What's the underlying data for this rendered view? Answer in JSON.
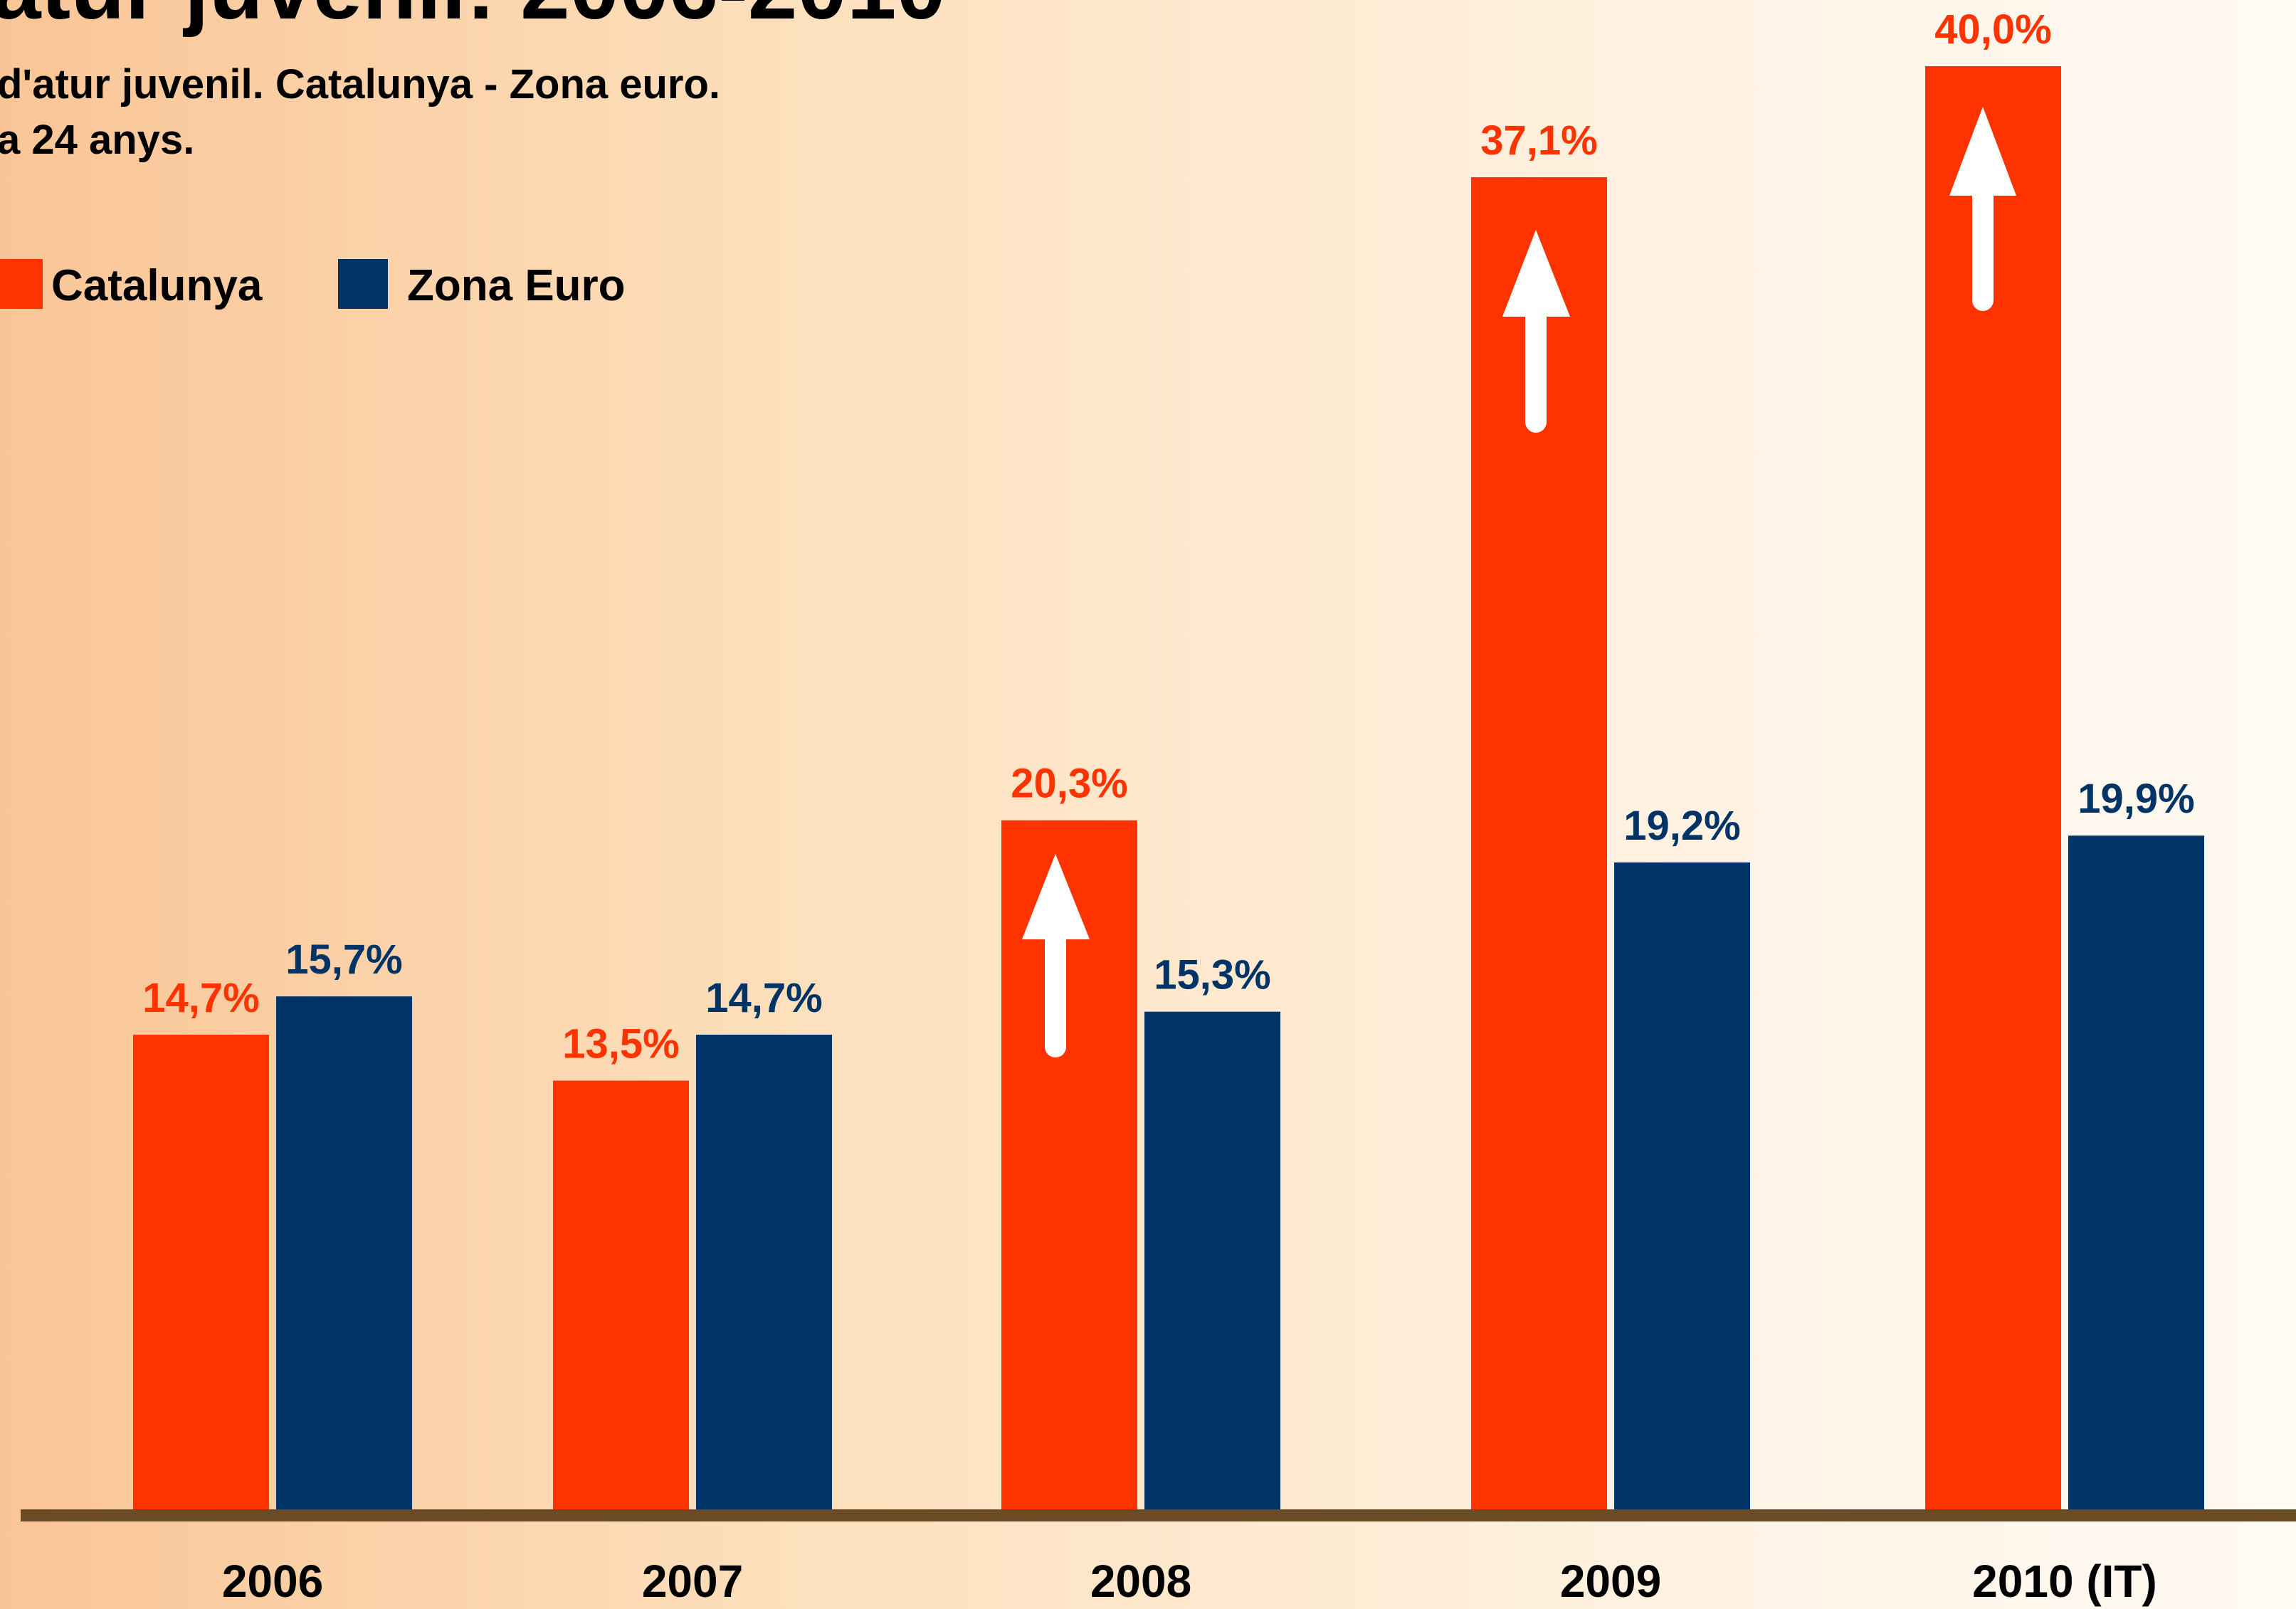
{
  "chart_data": {
    "type": "bar",
    "title": "atur juvenil: 2006-2010",
    "subtitle": [
      "d'atur juvenil. Catalunya - Zona euro.",
      "a 24 anys."
    ],
    "categories": [
      "2006",
      "2007",
      "2008",
      "2009",
      "2010 (IT)"
    ],
    "series": [
      {
        "name": "Catalunya",
        "color": "#ff3300",
        "values": [
          14.7,
          13.5,
          20.3,
          37.1,
          40.0
        ],
        "value_labels": [
          "14,7%",
          "13,5%",
          "20,3%",
          "37,1%",
          "40,0%"
        ]
      },
      {
        "name": "Zona Euro",
        "color": "#003366",
        "values": [
          15.7,
          14.7,
          15.3,
          19.2,
          19.9
        ],
        "value_labels": [
          "15,7%",
          "14,7%",
          "15,3%",
          "19,2%",
          "19,9%"
        ]
      }
    ],
    "ylim": [
      2.3,
      40
    ],
    "legend": "top-left"
  }
}
